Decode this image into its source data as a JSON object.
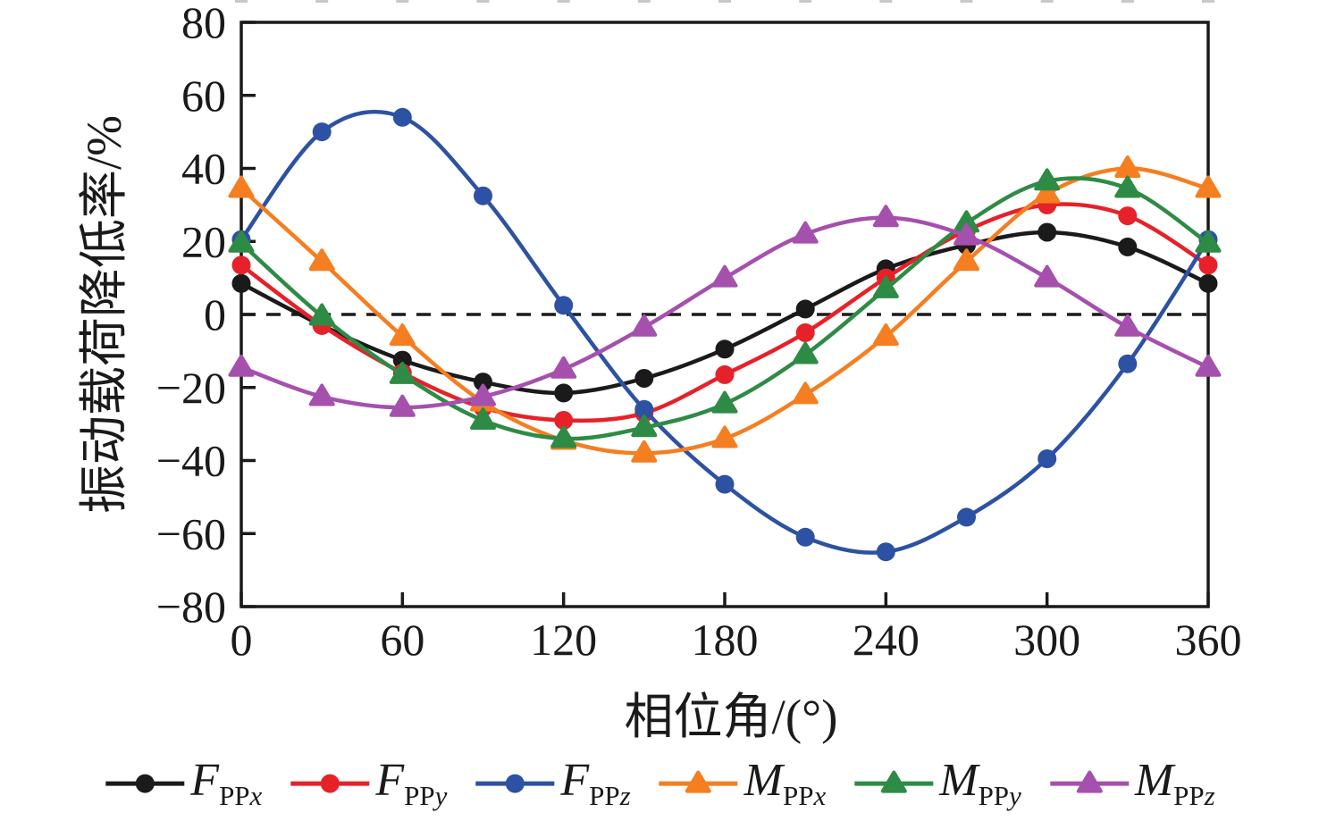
{
  "chart_data": {
    "type": "line",
    "title": "",
    "xlabel": "相位角/(°)",
    "ylabel": "振动载荷降低率/%",
    "xlim": [
      0,
      360
    ],
    "ylim": [
      -80,
      80
    ],
    "grid": false,
    "legend_position": "bottom",
    "axis_color": "#1a1a1a",
    "zero_line": {
      "value": 0,
      "style": "dashed",
      "color": "#1a1a1a"
    },
    "x_tick_values": [
      0,
      60,
      120,
      180,
      240,
      300,
      360
    ],
    "x_tick_labels": [
      "0",
      "60",
      "120",
      "180",
      "240",
      "300",
      "360"
    ],
    "y_tick_values": [
      -80,
      -60,
      -40,
      -20,
      0,
      20,
      40,
      60,
      80
    ],
    "y_tick_labels": [
      "−80",
      "−60",
      "−40",
      "−20",
      "0",
      "20",
      "40",
      "60",
      "80"
    ],
    "top_edge_minor_marks": {
      "color": "#c9c9c9",
      "positions_deg": [
        0,
        30,
        60,
        90,
        120,
        150,
        180,
        210,
        240,
        270,
        300,
        330,
        360
      ]
    },
    "x": [
      0,
      30,
      60,
      90,
      120,
      150,
      180,
      210,
      240,
      270,
      300,
      330,
      360
    ],
    "series": [
      {
        "name": "F_PPx",
        "legend_main": "F",
        "legend_sub": "PP",
        "legend_sub_italic": "x",
        "color": "#1a1a1a",
        "marker": "circle",
        "values": [
          8.5,
          -3,
          -12.5,
          -18.5,
          -21.5,
          -17.5,
          -9.5,
          1.5,
          12.5,
          19,
          22.5,
          18.5,
          8.5
        ]
      },
      {
        "name": "F_PPy",
        "legend_main": "F",
        "legend_sub": "PP",
        "legend_sub_italic": "y",
        "color": "#e62129",
        "marker": "circle",
        "values": [
          13.5,
          -3,
          -16,
          -25.5,
          -29,
          -27,
          -16.5,
          -5,
          10,
          23,
          30,
          27,
          13.5
        ]
      },
      {
        "name": "F_PPz",
        "legend_main": "F",
        "legend_sub": "PP",
        "legend_sub_italic": "z",
        "color": "#2d51a3",
        "marker": "circle",
        "values": [
          20.5,
          50,
          54,
          32.5,
          2.5,
          -26,
          -46.5,
          -61,
          -65,
          -55.5,
          -39.5,
          -13.5,
          20.5
        ]
      },
      {
        "name": "M_PPx",
        "legend_main": "M",
        "legend_sub": "PP",
        "legend_sub_italic": "x",
        "color": "#f57e20",
        "marker": "triangle",
        "values": [
          34.5,
          14.5,
          -6,
          -24,
          -34.5,
          -38,
          -34,
          -22,
          -6,
          14.5,
          33,
          40,
          34.5
        ]
      },
      {
        "name": "M_PPy",
        "legend_main": "M",
        "legend_sub": "PP",
        "legend_sub_italic": "y",
        "color": "#2e8b45",
        "marker": "triangle",
        "values": [
          19.5,
          -0.5,
          -16.5,
          -29,
          -34,
          -31,
          -24.5,
          -11,
          7,
          25,
          36.5,
          34.5,
          19.5
        ]
      },
      {
        "name": "M_PPz",
        "legend_main": "M",
        "legend_sub": "PP",
        "legend_sub_italic": "z",
        "color": "#a650ae",
        "marker": "triangle",
        "values": [
          -14.5,
          -22.5,
          -25.5,
          -22.5,
          -15,
          -3.5,
          10,
          22,
          26.5,
          21.5,
          10,
          -3.5,
          -14.5
        ]
      }
    ]
  }
}
